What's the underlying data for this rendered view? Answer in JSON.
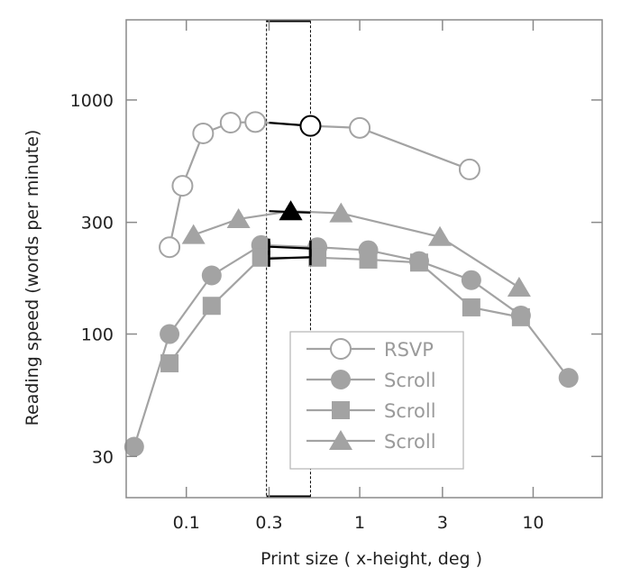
{
  "chart_data": {
    "type": "line",
    "xscale": "log",
    "yscale": "log",
    "xlabel": "Print size ( x-height, deg )",
    "ylabel": "Reading speed (words per minute)",
    "xticks": [
      0.1,
      0.3,
      1,
      3,
      10
    ],
    "xtick_labels": [
      "0.1",
      "0.3",
      "1",
      "3",
      "10"
    ],
    "yticks": [
      30,
      100,
      300,
      1000
    ],
    "ytick_labels": [
      "30",
      "100",
      "300",
      "1000"
    ],
    "xlim": [
      0.045,
      25
    ],
    "ylim": [
      20,
      2200
    ],
    "grid": false,
    "legend_position": "bottom-center",
    "highlight_band": [
      0.29,
      0.52
    ],
    "series": [
      {
        "name": "RSVP",
        "marker": "open-circle",
        "x": [
          0.08,
          0.095,
          0.125,
          0.18,
          0.25,
          0.52,
          1.0,
          4.3
        ],
        "y": [
          235,
          430,
          720,
          800,
          805,
          775,
          760,
          505
        ],
        "highlight": {
          "x": [
            0.3,
            0.52
          ],
          "y": [
            800,
            775
          ]
        }
      },
      {
        "name": "Scroll",
        "marker": "filled-circle",
        "x": [
          0.05,
          0.08,
          0.14,
          0.27,
          0.57,
          1.12,
          2.2,
          4.4,
          8.5,
          16.0
        ],
        "y": [
          33,
          100,
          178,
          240,
          235,
          228,
          205,
          170,
          120,
          65
        ],
        "highlight": {
          "x": [
            0.3,
            0.52
          ],
          "y": [
            236,
            232
          ]
        }
      },
      {
        "name": "Scroll",
        "marker": "filled-square",
        "x": [
          0.08,
          0.14,
          0.27,
          0.57,
          1.12,
          2.2,
          4.4,
          8.5
        ],
        "y": [
          75,
          132,
          212,
          212,
          208,
          202,
          130,
          118
        ],
        "highlight": {
          "x": [
            0.3,
            0.52
          ],
          "y": [
            210,
            213
          ]
        }
      },
      {
        "name": "Scroll",
        "marker": "filled-triangle",
        "x": [
          0.11,
          0.2,
          0.4,
          0.78,
          2.9,
          8.3
        ],
        "y": [
          265,
          310,
          335,
          328,
          260,
          158
        ],
        "highlight": {
          "x": [
            0.3,
            0.52
          ],
          "y": [
            335,
            330
          ]
        }
      }
    ]
  },
  "colors": {
    "series_gray": "#a3a3a3",
    "highlight": "#000000",
    "axis": "#8a8a8a"
  }
}
